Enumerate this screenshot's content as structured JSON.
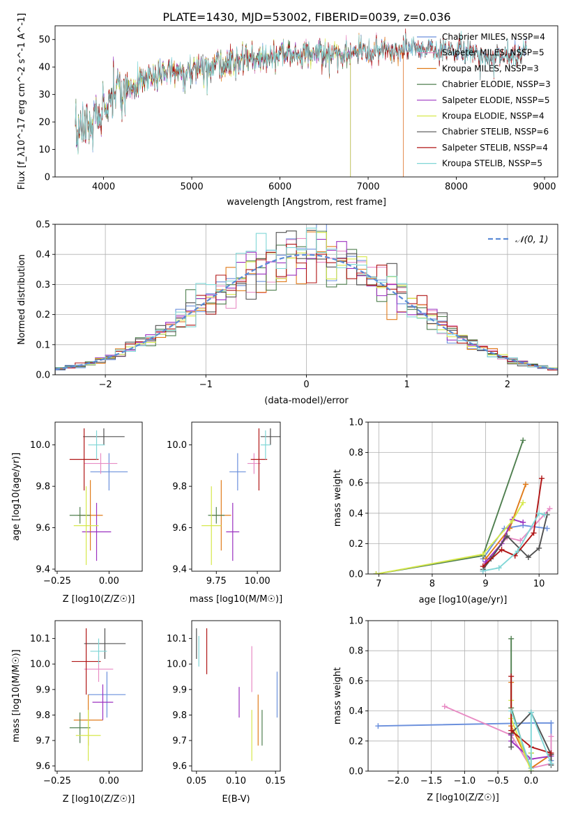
{
  "figure_title": "PLATE=1430, MJD=53002, FIBERID=0039, z=0.036",
  "colors": {
    "Chabrier MILES": "#6a8fdc",
    "Salpeter MILES": "#e88bc4",
    "Kroupa MILES": "#e07b1a",
    "Chabrier ELODIE": "#4f7f4f",
    "Salpeter ELODIE": "#9b30c0",
    "Kroupa ELODIE": "#d6e84a",
    "Chabrier STELIB": "#505050",
    "Salpeter STELIB": "#b01515",
    "Kroupa STELIB": "#7fd6d6"
  },
  "chart_data": [
    {
      "id": "spectrum",
      "type": "line",
      "title": "PLATE=1430, MJD=53002, FIBERID=0039, z=0.036",
      "xlabel": "wavelength [Angstrom, rest frame]",
      "ylabel": "Flux [f_λ10^-17 erg cm^-2 s^-1 A^-1]",
      "xlim": [
        3450,
        9150
      ],
      "ylim": [
        0,
        55
      ],
      "xticks": [
        4000,
        5000,
        6000,
        7000,
        8000,
        9000
      ],
      "yticks": [
        0,
        10,
        20,
        30,
        40,
        50
      ],
      "legend_position": "top-right",
      "continuum": [
        [
          3680,
          14
        ],
        [
          3760,
          17
        ],
        [
          3850,
          21
        ],
        [
          3920,
          22
        ],
        [
          3970,
          20
        ],
        [
          4000,
          25
        ],
        [
          4100,
          31
        ],
        [
          4300,
          33
        ],
        [
          4500,
          36
        ],
        [
          4700,
          38
        ],
        [
          5000,
          39
        ],
        [
          5200,
          41
        ],
        [
          5500,
          42
        ],
        [
          6000,
          44
        ],
        [
          6500,
          45
        ],
        [
          7000,
          46
        ],
        [
          7500,
          47
        ],
        [
          8000,
          46
        ],
        [
          8500,
          44
        ],
        [
          8800,
          45
        ]
      ],
      "series": [
        {
          "name": "Chabrier MILES, N_SSP=4",
          "x_end": 8800
        },
        {
          "name": "Salpeter MILES, N_SSP=5",
          "x_end": 7400
        },
        {
          "name": "Kroupa MILES, N_SSP=3",
          "x_end": 7400
        },
        {
          "name": "Chabrier ELODIE, N_SSP=3",
          "x_end": 6800
        },
        {
          "name": "Salpeter ELODIE, N_SSP=5",
          "x_end": 6800
        },
        {
          "name": "Kroupa ELODIE, N_SSP=4",
          "x_end": 6800
        },
        {
          "name": "Chabrier STELIB, N_SSP=6",
          "x_end": 8800
        },
        {
          "name": "Salpeter STELIB, N_SSP=4",
          "x_end": 8800
        },
        {
          "name": "Kroupa STELIB, N_SSP=5",
          "x_end": 8800
        }
      ]
    },
    {
      "id": "residuals",
      "type": "histogram",
      "xlabel": "(data-model)/error",
      "ylabel": "Normed distribution",
      "xlim": [
        -2.5,
        2.5
      ],
      "ylim": [
        0,
        0.5
      ],
      "xticks": [
        -2,
        -1,
        0,
        1,
        2
      ],
      "xtick_labels": [
        "−2",
        "−1",
        "0",
        "1",
        "2"
      ],
      "yticks": [
        0,
        0.1,
        0.2,
        0.3,
        0.4,
        0.5
      ],
      "grid": true,
      "legend_position": "top-right",
      "reference_curve": "𝒩(0, 1)",
      "bin_width": 0.1
    },
    {
      "id": "age_vs_Z",
      "type": "errorbar",
      "xlabel": "Z [log10(Z/Z☉)]",
      "ylabel": "age [log10(age/yr)]",
      "xlim": [
        -0.26,
        0.16
      ],
      "ylim": [
        9.39,
        10.11
      ],
      "xticks": [
        -0.25,
        0.0
      ],
      "xtick_labels": [
        "−0.25",
        "0.00"
      ],
      "yticks": [
        9.4,
        9.6,
        9.8,
        10.0
      ],
      "points": [
        {
          "series": "Chabrier MILES",
          "x": 0.0,
          "xerr": 0.09,
          "y": 9.87,
          "yerr": 0.09
        },
        {
          "series": "Salpeter MILES",
          "x": -0.04,
          "xerr": 0.08,
          "y": 9.91,
          "yerr": 0.05
        },
        {
          "series": "Kroupa MILES",
          "x": -0.09,
          "xerr": 0.06,
          "y": 9.66,
          "yerr": 0.17
        },
        {
          "series": "Chabrier ELODIE",
          "x": -0.14,
          "xerr": 0.05,
          "y": 9.66,
          "yerr": 0.04
        },
        {
          "series": "Salpeter ELODIE",
          "x": -0.06,
          "xerr": 0.07,
          "y": 9.58,
          "yerr": 0.14
        },
        {
          "series": "Kroupa ELODIE",
          "x": -0.11,
          "xerr": 0.06,
          "y": 9.61,
          "yerr": 0.19
        },
        {
          "series": "Chabrier STELIB",
          "x": -0.025,
          "xerr": 0.1,
          "y": 10.04,
          "yerr": 0.04
        },
        {
          "series": "Salpeter STELIB",
          "x": -0.12,
          "xerr": 0.07,
          "y": 9.93,
          "yerr": 0.15
        },
        {
          "series": "Kroupa STELIB",
          "x": -0.06,
          "xerr": 0.04,
          "y": 10.0,
          "yerr": 0.07
        }
      ]
    },
    {
      "id": "age_vs_mass",
      "type": "errorbar",
      "xlabel": "mass [log10(M/M☉)]",
      "ylabel": "",
      "xlim": [
        9.6,
        10.14
      ],
      "ylim": [
        9.39,
        10.11
      ],
      "xticks": [
        9.75,
        10.0
      ],
      "xtick_labels": [
        "9.75",
        "10.00"
      ],
      "yticks": [
        9.4,
        9.6,
        9.8,
        10.0
      ],
      "points": [
        {
          "series": "Chabrier MILES",
          "x": 9.88,
          "xerr": 0.05,
          "y": 9.87,
          "yerr": 0.09
        },
        {
          "series": "Salpeter MILES",
          "x": 9.98,
          "xerr": 0.04,
          "y": 9.91,
          "yerr": 0.05
        },
        {
          "series": "Kroupa MILES",
          "x": 9.78,
          "xerr": 0.06,
          "y": 9.66,
          "yerr": 0.17
        },
        {
          "series": "Chabrier ELODIE",
          "x": 9.75,
          "xerr": 0.05,
          "y": 9.66,
          "yerr": 0.04
        },
        {
          "series": "Salpeter ELODIE",
          "x": 9.85,
          "xerr": 0.04,
          "y": 9.58,
          "yerr": 0.14
        },
        {
          "series": "Kroupa ELODIE",
          "x": 9.72,
          "xerr": 0.06,
          "y": 9.61,
          "yerr": 0.19
        },
        {
          "series": "Chabrier STELIB",
          "x": 10.08,
          "xerr": 0.06,
          "y": 10.04,
          "yerr": 0.04
        },
        {
          "series": "Salpeter STELIB",
          "x": 10.01,
          "xerr": 0.05,
          "y": 9.93,
          "yerr": 0.15
        },
        {
          "series": "Kroupa STELIB",
          "x": 10.05,
          "xerr": 0.03,
          "y": 10.0,
          "yerr": 0.07
        }
      ]
    },
    {
      "id": "weight_vs_age",
      "type": "line",
      "xlabel": "age [log10(age/yr)]",
      "ylabel": "mass weight",
      "xlim": [
        6.8,
        10.35
      ],
      "ylim": [
        0,
        1.0
      ],
      "xticks": [
        7,
        8,
        9,
        10
      ],
      "yticks": [
        0.0,
        0.2,
        0.4,
        0.6,
        0.8,
        1.0
      ],
      "grid": true,
      "series": [
        {
          "name": "Chabrier MILES",
          "x": [
            8.95,
            9.35,
            9.7,
            10.15
          ],
          "y": [
            0.1,
            0.3,
            0.32,
            0.3
          ]
        },
        {
          "name": "Salpeter MILES",
          "x": [
            9.0,
            9.4,
            9.65,
            10.2
          ],
          "y": [
            0.07,
            0.24,
            0.22,
            0.43
          ]
        },
        {
          "name": "Kroupa MILES",
          "x": [
            9.0,
            9.45,
            9.75
          ],
          "y": [
            0.1,
            0.3,
            0.59
          ]
        },
        {
          "name": "Chabrier ELODIE",
          "x": [
            6.95,
            8.95,
            9.7
          ],
          "y": [
            0.0,
            0.12,
            0.88
          ]
        },
        {
          "name": "Salpeter ELODIE",
          "x": [
            8.95,
            9.0,
            9.3,
            9.5,
            9.7
          ],
          "y": [
            0.02,
            0.08,
            0.2,
            0.36,
            0.34
          ]
        },
        {
          "name": "Kroupa ELODIE",
          "x": [
            6.95,
            8.95,
            9.5,
            9.7
          ],
          "y": [
            0.0,
            0.13,
            0.35,
            0.47
          ]
        },
        {
          "name": "Chabrier STELIB",
          "x": [
            8.95,
            9.1,
            9.4,
            9.8,
            10.0,
            10.15
          ],
          "y": [
            0.03,
            0.1,
            0.25,
            0.11,
            0.17,
            0.39
          ]
        },
        {
          "name": "Salpeter STELIB",
          "x": [
            8.95,
            9.3,
            9.55,
            9.9,
            10.05
          ],
          "y": [
            0.05,
            0.16,
            0.12,
            0.27,
            0.63
          ]
        },
        {
          "name": "Kroupa STELIB",
          "x": [
            8.95,
            9.25,
            9.6,
            10.0,
            10.1
          ],
          "y": [
            0.02,
            0.04,
            0.15,
            0.4,
            0.39
          ]
        }
      ]
    },
    {
      "id": "mass_vs_Z",
      "type": "errorbar",
      "xlabel": "Z [log10(Z/Z☉)]",
      "ylabel": "mass [log10(M/M☉)]",
      "xlim": [
        -0.26,
        0.16
      ],
      "ylim": [
        9.58,
        10.17
      ],
      "xticks": [
        -0.25,
        0.0
      ],
      "xtick_labels": [
        "−0.25",
        "0.00"
      ],
      "yticks": [
        9.6,
        9.7,
        9.8,
        9.9,
        10.0,
        10.1
      ],
      "points": [
        {
          "series": "Chabrier MILES",
          "x": -0.01,
          "xerr": 0.09,
          "y": 9.88,
          "yerr": 0.09
        },
        {
          "series": "Salpeter MILES",
          "x": -0.05,
          "xerr": 0.07,
          "y": 9.98,
          "yerr": 0.05
        },
        {
          "series": "Kroupa MILES",
          "x": -0.1,
          "xerr": 0.07,
          "y": 9.78,
          "yerr": 0.1
        },
        {
          "series": "Chabrier ELODIE",
          "x": -0.14,
          "xerr": 0.05,
          "y": 9.75,
          "yerr": 0.06
        },
        {
          "series": "Salpeter ELODIE",
          "x": -0.03,
          "xerr": 0.05,
          "y": 9.85,
          "yerr": 0.07
        },
        {
          "series": "Kroupa ELODIE",
          "x": -0.1,
          "xerr": 0.06,
          "y": 9.72,
          "yerr": 0.1
        },
        {
          "series": "Chabrier STELIB",
          "x": -0.02,
          "xerr": 0.1,
          "y": 10.08,
          "yerr": 0.06
        },
        {
          "series": "Salpeter STELIB",
          "x": -0.11,
          "xerr": 0.07,
          "y": 10.01,
          "yerr": 0.13
        },
        {
          "series": "Kroupa STELIB",
          "x": -0.05,
          "xerr": 0.04,
          "y": 10.05,
          "yerr": 0.05
        }
      ]
    },
    {
      "id": "mass_vs_ebv",
      "type": "errorbar",
      "xlabel": "E(B-V)",
      "ylabel": "",
      "xlim": [
        0.044,
        0.156
      ],
      "ylim": [
        9.58,
        10.17
      ],
      "xticks": [
        0.05,
        0.1,
        0.15
      ],
      "xtick_labels": [
        "0.05",
        "0.10",
        "0.15"
      ],
      "yticks": [
        9.6,
        9.7,
        9.8,
        9.9,
        10.0,
        10.1
      ],
      "points": [
        {
          "series": "Chabrier MILES",
          "x": 0.152,
          "xerr": 0,
          "y": 9.88,
          "yerr": 0.09
        },
        {
          "series": "Salpeter MILES",
          "x": 0.12,
          "xerr": 0,
          "y": 9.98,
          "yerr": 0.09
        },
        {
          "series": "Kroupa MILES",
          "x": 0.128,
          "xerr": 0,
          "y": 9.78,
          "yerr": 0.1
        },
        {
          "series": "Chabrier ELODIE",
          "x": 0.133,
          "xerr": 0,
          "y": 9.75,
          "yerr": 0.07
        },
        {
          "series": "Salpeter ELODIE",
          "x": 0.104,
          "xerr": 0,
          "y": 9.85,
          "yerr": 0.06
        },
        {
          "series": "Kroupa ELODIE",
          "x": 0.12,
          "xerr": 0,
          "y": 9.72,
          "yerr": 0.1
        },
        {
          "series": "Chabrier STELIB",
          "x": 0.05,
          "xerr": 0,
          "y": 10.08,
          "yerr": 0.06
        },
        {
          "series": "Salpeter STELIB",
          "x": 0.063,
          "xerr": 0,
          "y": 10.05,
          "yerr": 0.09
        },
        {
          "series": "Kroupa STELIB",
          "x": 0.053,
          "xerr": 0,
          "y": 10.05,
          "yerr": 0.06
        }
      ]
    },
    {
      "id": "weight_vs_Z",
      "type": "line",
      "xlabel": "Z [log10(Z/Z☉)]",
      "ylabel": "mass weight",
      "xlim": [
        -2.45,
        0.4
      ],
      "ylim": [
        0,
        1.0
      ],
      "xticks": [
        -2.0,
        -1.5,
        -1.0,
        -0.5,
        0.0
      ],
      "xtick_labels": [
        "−2.0",
        "−1.5",
        "−1.0",
        "−0.5",
        "0.0"
      ],
      "yticks": [
        0.0,
        0.2,
        0.4,
        0.6,
        0.8,
        1.0
      ],
      "grid": true,
      "series": [
        {
          "name": "Chabrier MILES",
          "x": [
            -2.3,
            0.0,
            0.3,
            0.3
          ],
          "y": [
            0.3,
            0.32,
            0.32,
            0.07
          ]
        },
        {
          "name": "Salpeter MILES",
          "x": [
            -1.3,
            -0.3,
            0.0,
            0.3,
            0.3
          ],
          "y": [
            0.43,
            0.24,
            0.02,
            0.05,
            0.23
          ]
        },
        {
          "name": "Kroupa MILES",
          "x": [
            -0.3,
            -0.3,
            0.0,
            0.3
          ],
          "y": [
            0.59,
            0.3,
            0.02,
            0.11
          ]
        },
        {
          "name": "Chabrier ELODIE",
          "x": [
            -0.3,
            -0.3,
            0.0,
            0.0
          ],
          "y": [
            0.88,
            0.42,
            0.0,
            0.12
          ]
        },
        {
          "name": "Salpeter ELODIE",
          "x": [
            -0.3,
            -0.3,
            0.0,
            0.3
          ],
          "y": [
            0.24,
            0.2,
            0.08,
            0.1
          ]
        },
        {
          "name": "Kroupa ELODIE",
          "x": [
            -0.3,
            -0.3,
            0.0,
            0.0
          ],
          "y": [
            0.47,
            0.35,
            0.0,
            0.12
          ]
        },
        {
          "name": "Chabrier STELIB",
          "x": [
            -0.3,
            -0.3,
            0.0,
            0.3,
            0.3
          ],
          "y": [
            0.16,
            0.25,
            0.39,
            0.11,
            0.04
          ]
        },
        {
          "name": "Salpeter STELIB",
          "x": [
            -0.3,
            -0.3,
            0.0,
            0.3
          ],
          "y": [
            0.63,
            0.27,
            0.16,
            0.12
          ]
        },
        {
          "name": "Kroupa STELIB",
          "x": [
            -0.3,
            0.0,
            0.0,
            0.3
          ],
          "y": [
            0.4,
            0.02,
            0.39,
            0.05
          ]
        }
      ]
    }
  ]
}
